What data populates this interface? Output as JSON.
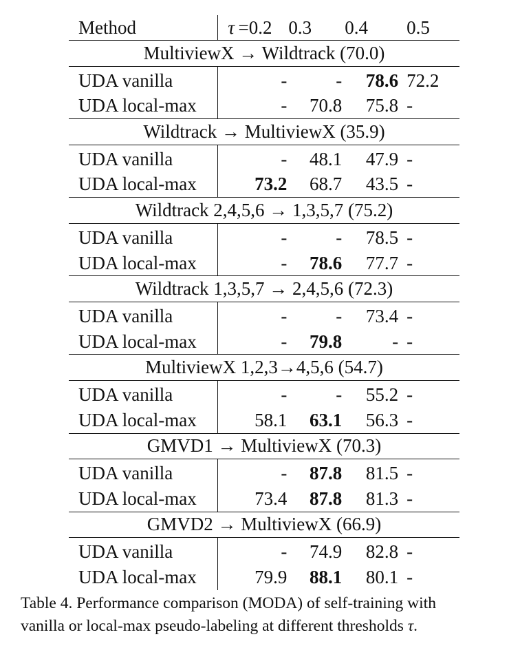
{
  "header": {
    "method": "Method",
    "tau_symbol": "τ",
    "thresholds": [
      "=0.2",
      "0.3",
      "0.4",
      "0.5"
    ]
  },
  "sections": [
    {
      "title": "MultiviewX → Wildtrack (70.0)",
      "rows": [
        {
          "method": "UDA vanilla",
          "values": [
            "-",
            "-",
            "78.6",
            "72.2"
          ],
          "bold": [
            false,
            false,
            true,
            false
          ]
        },
        {
          "method": "UDA local-max",
          "values": [
            "-",
            "70.8",
            "75.8",
            "-"
          ],
          "bold": [
            false,
            false,
            false,
            false
          ]
        }
      ]
    },
    {
      "title": "Wildtrack → MultiviewX (35.9)",
      "rows": [
        {
          "method": "UDA vanilla",
          "values": [
            "-",
            "48.1",
            "47.9",
            "-"
          ],
          "bold": [
            false,
            false,
            false,
            false
          ]
        },
        {
          "method": "UDA local-max",
          "values": [
            "73.2",
            "68.7",
            "43.5",
            "-"
          ],
          "bold": [
            true,
            false,
            false,
            false
          ]
        }
      ]
    },
    {
      "title": "Wildtrack 2,4,5,6 → 1,3,5,7 (75.2)",
      "rows": [
        {
          "method": "UDA vanilla",
          "values": [
            "-",
            "-",
            "78.5",
            "-"
          ],
          "bold": [
            false,
            false,
            false,
            false
          ]
        },
        {
          "method": "UDA local-max",
          "values": [
            "-",
            "78.6",
            "77.7",
            "-"
          ],
          "bold": [
            false,
            true,
            false,
            false
          ]
        }
      ]
    },
    {
      "title": "Wildtrack 1,3,5,7 → 2,4,5,6 (72.3)",
      "rows": [
        {
          "method": "UDA vanilla",
          "values": [
            "-",
            "-",
            "73.4",
            "-"
          ],
          "bold": [
            false,
            false,
            false,
            false
          ]
        },
        {
          "method": "UDA local-max",
          "values": [
            "-",
            "79.8",
            "-",
            "-"
          ],
          "bold": [
            false,
            true,
            false,
            false
          ]
        }
      ]
    },
    {
      "title": "MultiviewX 1,2,3→4,5,6 (54.7)",
      "rows": [
        {
          "method": "UDA vanilla",
          "values": [
            "-",
            "-",
            "55.2",
            "-"
          ],
          "bold": [
            false,
            false,
            false,
            false
          ]
        },
        {
          "method": "UDA local-max",
          "values": [
            "58.1",
            "63.1",
            "56.3",
            "-"
          ],
          "bold": [
            false,
            true,
            false,
            false
          ]
        }
      ]
    },
    {
      "title": "GMVD1 → MultiviewX (70.3)",
      "rows": [
        {
          "method": "UDA vanilla",
          "values": [
            "-",
            "87.8",
            "81.5",
            "-"
          ],
          "bold": [
            false,
            true,
            false,
            false
          ]
        },
        {
          "method": "UDA local-max",
          "values": [
            "73.4",
            "87.8",
            "81.3",
            "-"
          ],
          "bold": [
            false,
            true,
            false,
            false
          ]
        }
      ]
    },
    {
      "title": "GMVD2 → MultiviewX (66.9)",
      "rows": [
        {
          "method": "UDA vanilla",
          "values": [
            "-",
            "74.9",
            "82.8",
            "-"
          ],
          "bold": [
            false,
            false,
            false,
            false
          ]
        },
        {
          "method": "UDA local-max",
          "values": [
            "79.9",
            "88.1",
            "80.1",
            "-"
          ],
          "bold": [
            false,
            true,
            false,
            false
          ]
        }
      ]
    }
  ],
  "caption": {
    "line1": "Table 4.  Performance comparison (MODA) of self-training with",
    "line2_text": "vanilla or local-max pseudo-labeling at different thresholds ",
    "line2_symbol": "τ",
    "line2_end": "."
  }
}
